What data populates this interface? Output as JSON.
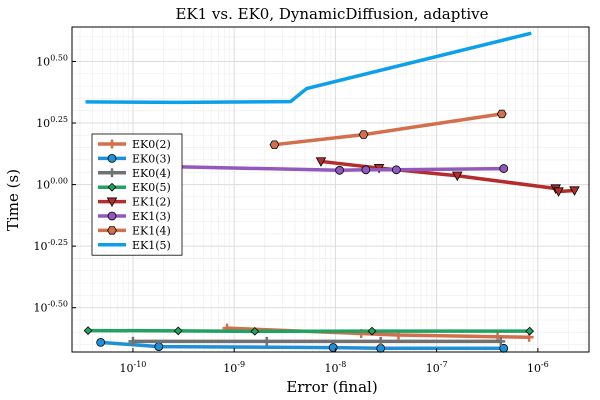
{
  "chart_data": {
    "type": "line",
    "title": "EK1 vs. EK0, DynamicDiffusion, adaptive",
    "xlabel": "Error (final)",
    "ylabel": "Time (s)",
    "xscale": "log10",
    "yscale": "log10",
    "xlim": [
      2.5e-11,
      3.2e-06
    ],
    "ylim": [
      -0.68,
      0.64
    ],
    "grid": true,
    "legend_position": "left",
    "x_ticks": [
      {
        "value": 1e-10,
        "label": "10^-10"
      },
      {
        "value": 1e-09,
        "label": "10^-9"
      },
      {
        "value": 1e-08,
        "label": "10^-8"
      },
      {
        "value": 1e-07,
        "label": "10^-7"
      },
      {
        "value": 1e-06,
        "label": "10^-6"
      }
    ],
    "y_ticks": [
      {
        "value": -0.5,
        "label": "10^-0.50"
      },
      {
        "value": -0.25,
        "label": "10^-0.25"
      },
      {
        "value": 0.0,
        "label": "10^0.00"
      },
      {
        "value": 0.25,
        "label": "10^0.25"
      },
      {
        "value": 0.5,
        "label": "10^0.50"
      }
    ],
    "series": [
      {
        "name": "EK0(2)",
        "color": "#d36f4d",
        "marker": "cross",
        "points": [
          [
            8.5e-10,
            -0.583
          ],
          [
            1.8e-08,
            -0.605
          ],
          [
            4.2e-08,
            -0.611
          ],
          [
            4e-07,
            -0.618
          ],
          [
            8.2e-07,
            -0.62
          ]
        ]
      },
      {
        "name": "EK0(3)",
        "color": "#1e90d8",
        "marker": "circle",
        "points": [
          [
            4.8e-11,
            -0.641
          ],
          [
            1.8e-10,
            -0.658
          ],
          [
            9.5e-09,
            -0.662
          ],
          [
            2.8e-08,
            -0.665
          ],
          [
            4.6e-07,
            -0.665
          ]
        ]
      },
      {
        "name": "EK0(4)",
        "color": "#717171",
        "marker": "cross",
        "points": [
          [
            1e-10,
            -0.637
          ],
          [
            2.1e-09,
            -0.637
          ],
          [
            2.8e-08,
            -0.637
          ],
          [
            4.3e-07,
            -0.637
          ]
        ]
      },
      {
        "name": "EK0(5)",
        "color": "#21a163",
        "marker": "diamond",
        "points": [
          [
            3.6e-11,
            -0.593
          ],
          [
            2.8e-10,
            -0.594
          ],
          [
            1.6e-09,
            -0.596
          ],
          [
            2.3e-08,
            -0.595
          ],
          [
            8.3e-07,
            -0.595
          ]
        ]
      },
      {
        "name": "EK1(2)",
        "color": "#b32d2d",
        "marker": "triangle-down",
        "points": [
          [
            7.2e-09,
            0.094
          ],
          [
            2.7e-08,
            0.067
          ],
          [
            1.6e-07,
            0.036
          ],
          [
            1.5e-06,
            -0.016
          ],
          [
            1.6e-06,
            -0.028
          ],
          [
            2.3e-06,
            -0.024
          ]
        ]
      },
      {
        "name": "EK1(3)",
        "color": "#9159bd",
        "marker": "circle",
        "points": [
          [
            1.8e-10,
            0.074
          ],
          [
            1.1e-08,
            0.058
          ],
          [
            2e-08,
            0.06
          ],
          [
            4e-08,
            0.06
          ],
          [
            4.6e-07,
            0.065
          ]
        ]
      },
      {
        "name": "EK1(4)",
        "color": "#d36f4d",
        "marker": "hexagon",
        "points": [
          [
            2.5e-09,
            0.162
          ],
          [
            1.9e-08,
            0.203
          ],
          [
            4.4e-07,
            0.287
          ]
        ]
      },
      {
        "name": "EK1(5)",
        "color": "#0ca0ea",
        "marker": "none",
        "points": [
          [
            3.4e-11,
            0.336
          ],
          [
            2.8e-10,
            0.334
          ],
          [
            3.6e-09,
            0.337
          ],
          [
            5.2e-09,
            0.39
          ],
          [
            8.6e-07,
            0.615
          ]
        ]
      }
    ]
  }
}
